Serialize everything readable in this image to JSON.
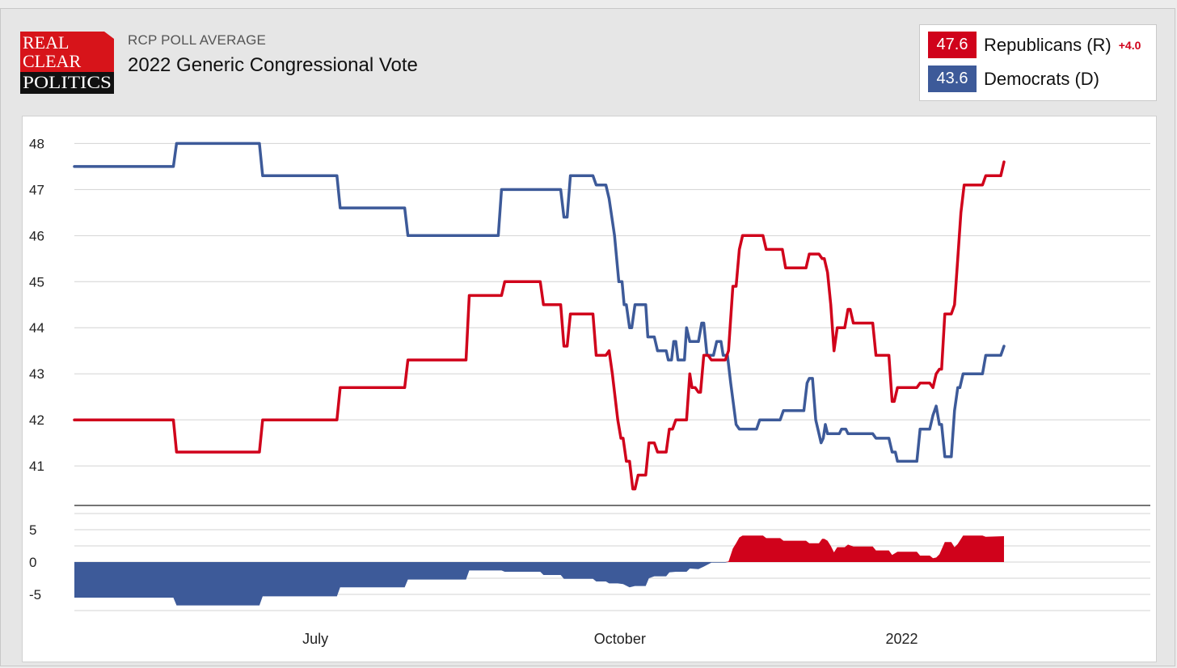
{
  "header": {
    "logo_lines": [
      "REAL",
      "CLEAR",
      "POLITICS"
    ],
    "subtitle": "RCP POLL AVERAGE",
    "title": "2022 Generic Congressional Vote"
  },
  "legend": [
    {
      "value": "47.6",
      "name": "Republicans (R)",
      "diff": "+4.0",
      "color": "#d0021b"
    },
    {
      "value": "43.6",
      "name": "Democrats (D)",
      "diff": "",
      "color": "#3d5a99"
    }
  ],
  "colors": {
    "rep": "#d0021b",
    "dem": "#3d5a99",
    "grid": "#d3d3d3"
  },
  "chart_data": {
    "type": "line",
    "title": "2022 Generic Congressional Vote",
    "x_range": [
      0,
      1000
    ],
    "x_ticks": [
      {
        "x": 224,
        "label": "July"
      },
      {
        "x": 507,
        "label": "October"
      },
      {
        "x": 769,
        "label": "2022"
      }
    ],
    "y_main": {
      "range": [
        40.3,
        48.2
      ],
      "ticks": [
        41,
        42,
        43,
        44,
        45,
        46,
        47,
        48
      ]
    },
    "y_spread": {
      "range": [
        -9,
        7
      ],
      "ticks": [
        5,
        0,
        -5
      ]
    },
    "series": [
      {
        "name": "Democrats (D)",
        "color": "#3d5a99",
        "points": [
          [
            0,
            47.5
          ],
          [
            92,
            47.5
          ],
          [
            95,
            48
          ],
          [
            172,
            48
          ],
          [
            175,
            47.3
          ],
          [
            244,
            47.3
          ],
          [
            247,
            46.6
          ],
          [
            307,
            46.6
          ],
          [
            310,
            46
          ],
          [
            394,
            46
          ],
          [
            397,
            47
          ],
          [
            452,
            47
          ],
          [
            455,
            46.4
          ],
          [
            458,
            46.4
          ],
          [
            461,
            47.3
          ],
          [
            482,
            47.3
          ],
          [
            485,
            47.1
          ],
          [
            494,
            47.1
          ],
          [
            497,
            46.8
          ],
          [
            502,
            46
          ],
          [
            506,
            45
          ],
          [
            509,
            45
          ],
          [
            511,
            44.5
          ],
          [
            513,
            44.5
          ],
          [
            516,
            44
          ],
          [
            518,
            44
          ],
          [
            521,
            44.5
          ],
          [
            531,
            44.5
          ],
          [
            533,
            43.8
          ],
          [
            539,
            43.8
          ],
          [
            542,
            43.5
          ],
          [
            550,
            43.5
          ],
          [
            552,
            43.3
          ],
          [
            555,
            43.3
          ],
          [
            557,
            43.7
          ],
          [
            559,
            43.7
          ],
          [
            561,
            43.3
          ],
          [
            567,
            43.3
          ],
          [
            569,
            44
          ],
          [
            572,
            43.7
          ],
          [
            580,
            43.7
          ],
          [
            583,
            44.1
          ],
          [
            585,
            44.1
          ],
          [
            588,
            43.4
          ],
          [
            594,
            43.4
          ],
          [
            597,
            43.7
          ],
          [
            601,
            43.7
          ],
          [
            603,
            43.4
          ],
          [
            607,
            43.4
          ],
          [
            610,
            42.8
          ],
          [
            615,
            41.9
          ],
          [
            618,
            41.8
          ],
          [
            634,
            41.8
          ],
          [
            637,
            42
          ],
          [
            656,
            42
          ],
          [
            659,
            42.2
          ],
          [
            678,
            42.2
          ],
          [
            681,
            42.8
          ],
          [
            683,
            42.9
          ],
          [
            686,
            42.9
          ],
          [
            689,
            42
          ],
          [
            692,
            41.7
          ],
          [
            694,
            41.5
          ],
          [
            696,
            41.6
          ],
          [
            698,
            41.9
          ],
          [
            700,
            41.7
          ],
          [
            711,
            41.7
          ],
          [
            713,
            41.8
          ],
          [
            717,
            41.8
          ],
          [
            719,
            41.7
          ],
          [
            742,
            41.7
          ],
          [
            745,
            41.6
          ],
          [
            757,
            41.6
          ],
          [
            760,
            41.3
          ],
          [
            763,
            41.3
          ],
          [
            765,
            41.1
          ],
          [
            783,
            41.1
          ],
          [
            786,
            41.8
          ],
          [
            795,
            41.8
          ],
          [
            798,
            42.1
          ],
          [
            801,
            42.3
          ],
          [
            804,
            41.9
          ],
          [
            806,
            41.9
          ],
          [
            809,
            41.2
          ],
          [
            815,
            41.2
          ],
          [
            818,
            42.2
          ],
          [
            821,
            42.7
          ],
          [
            823,
            42.7
          ],
          [
            826,
            43
          ],
          [
            844,
            43
          ],
          [
            847,
            43.4
          ],
          [
            861,
            43.4
          ],
          [
            864,
            43.6
          ]
        ]
      },
      {
        "name": "Republicans (R)",
        "color": "#d0021b",
        "points": [
          [
            0,
            42
          ],
          [
            92,
            42
          ],
          [
            95,
            41.3
          ],
          [
            172,
            41.3
          ],
          [
            175,
            42
          ],
          [
            244,
            42
          ],
          [
            247,
            42.7
          ],
          [
            307,
            42.7
          ],
          [
            310,
            43.3
          ],
          [
            364,
            43.3
          ],
          [
            367,
            44.7
          ],
          [
            397,
            44.7
          ],
          [
            400,
            45
          ],
          [
            433,
            45
          ],
          [
            436,
            44.5
          ],
          [
            452,
            44.5
          ],
          [
            455,
            43.6
          ],
          [
            458,
            43.6
          ],
          [
            461,
            44.3
          ],
          [
            482,
            44.3
          ],
          [
            485,
            43.4
          ],
          [
            494,
            43.4
          ],
          [
            497,
            43.5
          ],
          [
            500,
            43
          ],
          [
            505,
            42
          ],
          [
            508,
            41.6
          ],
          [
            510,
            41.6
          ],
          [
            513,
            41.1
          ],
          [
            516,
            41.1
          ],
          [
            519,
            40.5
          ],
          [
            521,
            40.5
          ],
          [
            524,
            40.8
          ],
          [
            531,
            40.8
          ],
          [
            534,
            41.5
          ],
          [
            539,
            41.5
          ],
          [
            542,
            41.3
          ],
          [
            550,
            41.3
          ],
          [
            553,
            41.8
          ],
          [
            556,
            41.8
          ],
          [
            559,
            42
          ],
          [
            569,
            42
          ],
          [
            572,
            43
          ],
          [
            574,
            42.7
          ],
          [
            577,
            42.7
          ],
          [
            580,
            42.6
          ],
          [
            582,
            42.6
          ],
          [
            585,
            43.4
          ],
          [
            589,
            43.4
          ],
          [
            592,
            43.3
          ],
          [
            605,
            43.3
          ],
          [
            608,
            43.5
          ],
          [
            612,
            44.9
          ],
          [
            615,
            44.9
          ],
          [
            618,
            45.7
          ],
          [
            621,
            46
          ],
          [
            640,
            46
          ],
          [
            643,
            45.7
          ],
          [
            658,
            45.7
          ],
          [
            661,
            45.3
          ],
          [
            680,
            45.3
          ],
          [
            683,
            45.6
          ],
          [
            692,
            45.6
          ],
          [
            695,
            45.5
          ],
          [
            697,
            45.5
          ],
          [
            700,
            45.2
          ],
          [
            703,
            44.5
          ],
          [
            706,
            43.5
          ],
          [
            709,
            44
          ],
          [
            716,
            44
          ],
          [
            719,
            44.4
          ],
          [
            721,
            44.4
          ],
          [
            724,
            44.1
          ],
          [
            742,
            44.1
          ],
          [
            745,
            43.4
          ],
          [
            757,
            43.4
          ],
          [
            760,
            42.4
          ],
          [
            762,
            42.4
          ],
          [
            765,
            42.7
          ],
          [
            783,
            42.7
          ],
          [
            786,
            42.8
          ],
          [
            795,
            42.8
          ],
          [
            798,
            42.7
          ],
          [
            801,
            43
          ],
          [
            804,
            43.1
          ],
          [
            806,
            43.1
          ],
          [
            809,
            44.3
          ],
          [
            815,
            44.3
          ],
          [
            818,
            44.5
          ],
          [
            821,
            45.5
          ],
          [
            824,
            46.5
          ],
          [
            827,
            47.1
          ],
          [
            844,
            47.1
          ],
          [
            847,
            47.3
          ],
          [
            861,
            47.3
          ],
          [
            864,
            47.6
          ]
        ]
      }
    ],
    "spread_series": {
      "name": "Spread (R minus D)",
      "points": [
        [
          0,
          -5.5
        ],
        [
          92,
          -5.5
        ],
        [
          95,
          -6.7
        ],
        [
          172,
          -6.7
        ],
        [
          175,
          -5.3
        ],
        [
          244,
          -5.3
        ],
        [
          247,
          -3.9
        ],
        [
          307,
          -3.9
        ],
        [
          310,
          -2.7
        ],
        [
          364,
          -2.7
        ],
        [
          367,
          -1.3
        ],
        [
          397,
          -1.3
        ],
        [
          400,
          -1.5
        ],
        [
          433,
          -1.5
        ],
        [
          436,
          -2
        ],
        [
          452,
          -2
        ],
        [
          455,
          -2.6
        ],
        [
          482,
          -2.6
        ],
        [
          485,
          -3
        ],
        [
          494,
          -3
        ],
        [
          497,
          -3.3
        ],
        [
          500,
          -3.3
        ],
        [
          505,
          -3.3
        ],
        [
          510,
          -3.4
        ],
        [
          516,
          -3.9
        ],
        [
          521,
          -3.7
        ],
        [
          531,
          -3.7
        ],
        [
          534,
          -2.5
        ],
        [
          539,
          -2.2
        ],
        [
          550,
          -2.2
        ],
        [
          553,
          -1.6
        ],
        [
          559,
          -1.5
        ],
        [
          569,
          -1.5
        ],
        [
          572,
          -1
        ],
        [
          580,
          -1.1
        ],
        [
          585,
          -0.7
        ],
        [
          592,
          -0.1
        ],
        [
          601,
          -0.1
        ],
        [
          605,
          -0.1
        ],
        [
          608,
          0.1
        ],
        [
          612,
          2.1
        ],
        [
          615,
          2.9
        ],
        [
          618,
          3.8
        ],
        [
          621,
          4.1
        ],
        [
          640,
          4.1
        ],
        [
          643,
          3.7
        ],
        [
          656,
          3.7
        ],
        [
          659,
          3.3
        ],
        [
          680,
          3.3
        ],
        [
          683,
          2.9
        ],
        [
          692,
          2.9
        ],
        [
          695,
          3.6
        ],
        [
          697,
          3.6
        ],
        [
          700,
          3.3
        ],
        [
          703,
          2.5
        ],
        [
          706,
          1.5
        ],
        [
          709,
          2.3
        ],
        [
          716,
          2.3
        ],
        [
          719,
          2.7
        ],
        [
          724,
          2.4
        ],
        [
          742,
          2.4
        ],
        [
          745,
          1.8
        ],
        [
          757,
          1.8
        ],
        [
          760,
          1.1
        ],
        [
          765,
          1.6
        ],
        [
          783,
          1.6
        ],
        [
          786,
          1
        ],
        [
          795,
          1
        ],
        [
          798,
          0.6
        ],
        [
          801,
          0.7
        ],
        [
          804,
          1.2
        ],
        [
          809,
          3.1
        ],
        [
          815,
          3.1
        ],
        [
          818,
          2.3
        ],
        [
          821,
          2.8
        ],
        [
          826,
          4.1
        ],
        [
          844,
          4.1
        ],
        [
          847,
          3.9
        ],
        [
          864,
          4
        ]
      ]
    }
  }
}
